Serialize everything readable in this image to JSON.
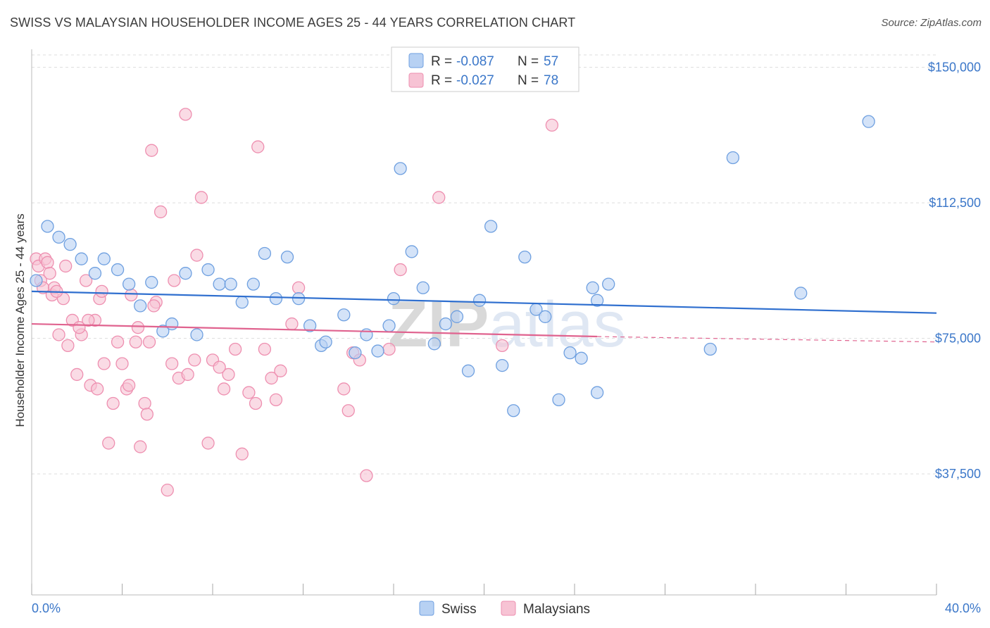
{
  "title": "SWISS VS MALAYSIAN HOUSEHOLDER INCOME AGES 25 - 44 YEARS CORRELATION CHART",
  "source": "Source: ZipAtlas.com",
  "watermark": "ZIPatlas",
  "colors": {
    "swiss": "#6fa0e0",
    "swiss_fill": "#b7d1f3",
    "swiss_line": "#2f6fcf",
    "malaysian": "#ee8fb0",
    "malaysian_fill": "#f7c3d4",
    "malaysian_line": "#e0638f",
    "axis_text": "#3b77c9",
    "grid": "#dddddd"
  },
  "legend_top": [
    {
      "r_label": "R = ",
      "r_value": "-0.087",
      "n_label": "N = ",
      "n_value": "57"
    },
    {
      "r_label": "R = ",
      "r_value": "-0.027",
      "n_label": "N = ",
      "n_value": "78"
    }
  ],
  "legend_bottom": [
    "Swiss",
    "Malaysians"
  ],
  "chart_data": {
    "type": "scatter",
    "title": "SWISS VS MALAYSIAN HOUSEHOLDER INCOME AGES 25 - 44 YEARS CORRELATION CHART",
    "xlabel": "",
    "ylabel": "Householder Income Ages 25 - 44 years",
    "xlim": [
      0,
      40
    ],
    "ylim": [
      4000,
      155000
    ],
    "x_tick_labels": [
      "0.0%",
      "40.0%"
    ],
    "y_ticks": [
      37500,
      75000,
      112500,
      150000
    ],
    "y_tick_labels": [
      "$37,500",
      "$75,000",
      "$112,500",
      "$150,000"
    ],
    "grid": true,
    "series": [
      {
        "name": "Swiss",
        "trend": {
          "x": [
            0,
            40
          ],
          "y": [
            88000,
            82000
          ]
        },
        "points": [
          [
            0.2,
            91000
          ],
          [
            0.7,
            106000
          ],
          [
            1.2,
            103000
          ],
          [
            1.7,
            101000
          ],
          [
            2.2,
            97000
          ],
          [
            2.8,
            93000
          ],
          [
            3.2,
            97000
          ],
          [
            3.8,
            94000
          ],
          [
            4.3,
            90000
          ],
          [
            4.8,
            84000
          ],
          [
            5.3,
            90500
          ],
          [
            5.8,
            77000
          ],
          [
            6.2,
            79000
          ],
          [
            6.8,
            93000
          ],
          [
            7.3,
            76000
          ],
          [
            7.8,
            94000
          ],
          [
            8.3,
            90000
          ],
          [
            8.8,
            90000
          ],
          [
            9.3,
            85000
          ],
          [
            9.8,
            90000
          ],
          [
            10.3,
            98500
          ],
          [
            10.8,
            86000
          ],
          [
            11.3,
            97500
          ],
          [
            11.8,
            86000
          ],
          [
            12.3,
            78500
          ],
          [
            12.8,
            73000
          ],
          [
            13.0,
            74000
          ],
          [
            13.8,
            81500
          ],
          [
            14.3,
            71000
          ],
          [
            14.8,
            76000
          ],
          [
            15.3,
            71500
          ],
          [
            15.8,
            78500
          ],
          [
            16.0,
            86000
          ],
          [
            16.3,
            122000
          ],
          [
            16.8,
            99000
          ],
          [
            17.3,
            89000
          ],
          [
            17.8,
            73500
          ],
          [
            18.3,
            79000
          ],
          [
            18.8,
            81000
          ],
          [
            19.3,
            66000
          ],
          [
            19.8,
            85500
          ],
          [
            20.3,
            106000
          ],
          [
            20.8,
            67500
          ],
          [
            21.3,
            55000
          ],
          [
            21.8,
            97500
          ],
          [
            22.3,
            83000
          ],
          [
            22.7,
            81000
          ],
          [
            23.3,
            58000
          ],
          [
            23.8,
            71000
          ],
          [
            24.3,
            69500
          ],
          [
            25.0,
            60000
          ],
          [
            24.8,
            89000
          ],
          [
            25.5,
            90000
          ],
          [
            25.0,
            85500
          ],
          [
            30.0,
            72000
          ],
          [
            31.0,
            125000
          ],
          [
            34.0,
            87500
          ],
          [
            37.0,
            135000
          ]
        ]
      },
      {
        "name": "Malaysians",
        "trend": {
          "x": [
            0,
            25
          ],
          "y": [
            79000,
            75500
          ]
        },
        "trend_dashed": {
          "x": [
            25,
            40
          ],
          "y": [
            75500,
            74000
          ]
        },
        "points": [
          [
            0.2,
            97000
          ],
          [
            0.3,
            95000
          ],
          [
            0.4,
            91000
          ],
          [
            0.5,
            89000
          ],
          [
            0.6,
            97000
          ],
          [
            0.7,
            96000
          ],
          [
            0.9,
            87000
          ],
          [
            1.0,
            89000
          ],
          [
            1.2,
            76000
          ],
          [
            1.4,
            86000
          ],
          [
            1.6,
            73000
          ],
          [
            1.8,
            80000
          ],
          [
            2.0,
            65000
          ],
          [
            2.2,
            76000
          ],
          [
            2.4,
            91000
          ],
          [
            2.6,
            62000
          ],
          [
            2.8,
            80000
          ],
          [
            3.0,
            86000
          ],
          [
            3.2,
            68000
          ],
          [
            3.4,
            46000
          ],
          [
            3.6,
            57000
          ],
          [
            3.8,
            74000
          ],
          [
            4.0,
            68000
          ],
          [
            4.2,
            61000
          ],
          [
            4.4,
            87000
          ],
          [
            4.6,
            74000
          ],
          [
            4.8,
            45000
          ],
          [
            5.0,
            57000
          ],
          [
            5.1,
            54000
          ],
          [
            5.2,
            74000
          ],
          [
            5.3,
            127000
          ],
          [
            5.5,
            85000
          ],
          [
            5.7,
            110000
          ],
          [
            6.0,
            33000
          ],
          [
            6.3,
            91000
          ],
          [
            6.5,
            64000
          ],
          [
            6.8,
            137000
          ],
          [
            6.9,
            65000
          ],
          [
            7.2,
            69000
          ],
          [
            7.5,
            114000
          ],
          [
            7.8,
            46000
          ],
          [
            8.0,
            69000
          ],
          [
            8.5,
            61000
          ],
          [
            8.7,
            65000
          ],
          [
            9.0,
            72000
          ],
          [
            9.3,
            43000
          ],
          [
            9.6,
            60000
          ],
          [
            10.0,
            128000
          ],
          [
            10.3,
            72000
          ],
          [
            10.6,
            64000
          ],
          [
            10.8,
            58000
          ],
          [
            11.0,
            66000
          ],
          [
            11.5,
            79000
          ],
          [
            11.8,
            89000
          ],
          [
            13.8,
            61000
          ],
          [
            14.0,
            55000
          ],
          [
            14.2,
            71000
          ],
          [
            14.5,
            69000
          ],
          [
            14.8,
            37000
          ],
          [
            15.8,
            72000
          ],
          [
            16.3,
            94000
          ],
          [
            18.0,
            114000
          ],
          [
            20.8,
            73000
          ],
          [
            23.0,
            134000
          ],
          [
            1.1,
            88000
          ],
          [
            2.5,
            80000
          ],
          [
            3.1,
            88000
          ],
          [
            4.3,
            62000
          ],
          [
            5.4,
            84000
          ],
          [
            6.2,
            68000
          ],
          [
            7.3,
            98000
          ],
          [
            1.5,
            95000
          ],
          [
            2.9,
            61000
          ],
          [
            4.7,
            78000
          ],
          [
            8.3,
            67000
          ],
          [
            9.9,
            57000
          ],
          [
            0.8,
            93000
          ],
          [
            2.1,
            78000
          ]
        ]
      }
    ]
  }
}
